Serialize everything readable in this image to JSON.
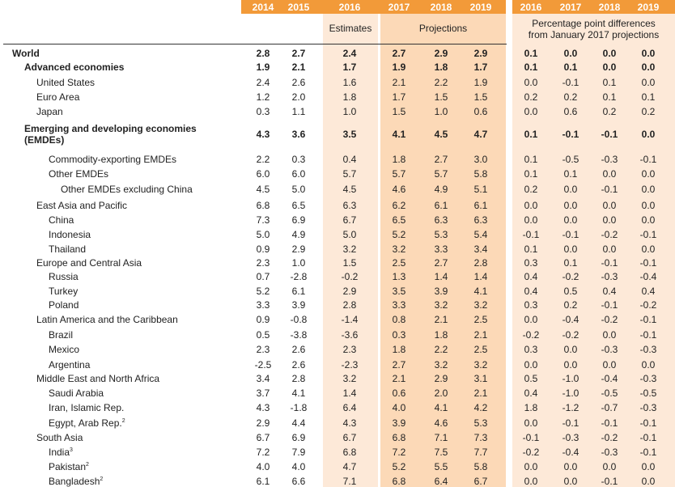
{
  "header": {
    "years_left": [
      "2014",
      "2015",
      "2016",
      "2017",
      "2018",
      "2019"
    ],
    "years_right": [
      "2016",
      "2017",
      "2018",
      "2019"
    ],
    "estimates_label": "Estimates",
    "projections_label": "Projections",
    "diff_label_line1": "Percentage point differences",
    "diff_label_line2": "from January 2017 projections"
  },
  "colors": {
    "header_orange": "#f29a39",
    "estimates_band": "#fde9d8",
    "projections_band": "#fcd9b7",
    "diff_band": "#fde9d8"
  },
  "rows": [
    {
      "label": "World",
      "indent": 0,
      "bold": true,
      "values": [
        "2.8",
        "2.7",
        "2.4",
        "2.7",
        "2.9",
        "2.9"
      ],
      "diffs": [
        "0.1",
        "0.0",
        "0.0",
        "0.0"
      ]
    },
    {
      "label": "Advanced economies",
      "indent": 1,
      "bold": true,
      "values": [
        "1.9",
        "2.1",
        "1.7",
        "1.9",
        "1.8",
        "1.7"
      ],
      "diffs": [
        "0.1",
        "0.1",
        "0.0",
        "0.0"
      ]
    },
    {
      "label": "United States",
      "indent": 2,
      "bold": false,
      "values": [
        "2.4",
        "2.6",
        "1.6",
        "2.1",
        "2.2",
        "1.9"
      ],
      "diffs": [
        "0.0",
        "-0.1",
        "0.1",
        "0.0"
      ]
    },
    {
      "label": "Euro Area",
      "indent": 2,
      "bold": false,
      "values": [
        "1.2",
        "2.0",
        "1.8",
        "1.7",
        "1.5",
        "1.5"
      ],
      "diffs": [
        "0.2",
        "0.2",
        "0.1",
        "0.1"
      ]
    },
    {
      "label": "Japan",
      "indent": 2,
      "bold": false,
      "values": [
        "0.3",
        "1.1",
        "1.0",
        "1.5",
        "1.0",
        "0.6"
      ],
      "diffs": [
        "0.0",
        "0.6",
        "0.2",
        "0.2"
      ]
    },
    {
      "label": "Emerging and developing economies",
      "label2": "(EMDEs)",
      "indent": 1,
      "bold": true,
      "values": [
        "4.3",
        "3.6",
        "3.5",
        "4.1",
        "4.5",
        "4.7"
      ],
      "diffs": [
        "0.1",
        "-0.1",
        "-0.1",
        "0.0"
      ]
    },
    {
      "label": "Commodity-exporting EMDEs",
      "indent": 3,
      "bold": false,
      "values": [
        "2.2",
        "0.3",
        "0.4",
        "1.8",
        "2.7",
        "3.0"
      ],
      "diffs": [
        "0.1",
        "-0.5",
        "-0.3",
        "-0.1"
      ]
    },
    {
      "label": "Other EMDEs",
      "indent": 3,
      "bold": false,
      "values": [
        "6.0",
        "6.0",
        "5.7",
        "5.7",
        "5.7",
        "5.8"
      ],
      "diffs": [
        "0.1",
        "0.1",
        "0.0",
        "0.0"
      ]
    },
    {
      "label": "Other EMDEs excluding China",
      "indent": 4,
      "bold": false,
      "values": [
        "4.5",
        "5.0",
        "4.5",
        "4.6",
        "4.9",
        "5.1"
      ],
      "diffs": [
        "0.2",
        "0.0",
        "-0.1",
        "0.0"
      ]
    },
    {
      "label": "East Asia and Pacific",
      "indent": 2,
      "bold": false,
      "values": [
        "6.8",
        "6.5",
        "6.3",
        "6.2",
        "6.1",
        "6.1"
      ],
      "diffs": [
        "0.0",
        "0.0",
        "0.0",
        "0.0"
      ]
    },
    {
      "label": "China",
      "indent": 3,
      "bold": false,
      "values": [
        "7.3",
        "6.9",
        "6.7",
        "6.5",
        "6.3",
        "6.3"
      ],
      "diffs": [
        "0.0",
        "0.0",
        "0.0",
        "0.0"
      ]
    },
    {
      "label": "Indonesia",
      "indent": 3,
      "bold": false,
      "values": [
        "5.0",
        "4.9",
        "5.0",
        "5.2",
        "5.3",
        "5.4"
      ],
      "diffs": [
        "-0.1",
        "-0.1",
        "-0.2",
        "-0.1"
      ]
    },
    {
      "label": "Thailand",
      "indent": 3,
      "bold": false,
      "values": [
        "0.9",
        "2.9",
        "3.2",
        "3.2",
        "3.3",
        "3.4"
      ],
      "diffs": [
        "0.1",
        "0.0",
        "0.0",
        "0.0"
      ]
    },
    {
      "label": "Europe and Central Asia",
      "indent": 2,
      "bold": false,
      "values": [
        "2.3",
        "1.0",
        "1.5",
        "2.5",
        "2.7",
        "2.8"
      ],
      "diffs": [
        "0.3",
        "0.1",
        "-0.1",
        "-0.1"
      ]
    },
    {
      "label": "Russia",
      "indent": 3,
      "bold": false,
      "values": [
        "0.7",
        "-2.8",
        "-0.2",
        "1.3",
        "1.4",
        "1.4"
      ],
      "diffs": [
        "0.4",
        "-0.2",
        "-0.3",
        "-0.4"
      ]
    },
    {
      "label": "Turkey",
      "indent": 3,
      "bold": false,
      "values": [
        "5.2",
        "6.1",
        "2.9",
        "3.5",
        "3.9",
        "4.1"
      ],
      "diffs": [
        "0.4",
        "0.5",
        "0.4",
        "0.4"
      ]
    },
    {
      "label": "Poland",
      "indent": 3,
      "bold": false,
      "values": [
        "3.3",
        "3.9",
        "2.8",
        "3.3",
        "3.2",
        "3.2"
      ],
      "diffs": [
        "0.3",
        "0.2",
        "-0.1",
        "-0.2"
      ]
    },
    {
      "label": "Latin America and the Caribbean",
      "indent": 2,
      "bold": false,
      "values": [
        "0.9",
        "-0.8",
        "-1.4",
        "0.8",
        "2.1",
        "2.5"
      ],
      "diffs": [
        "0.0",
        "-0.4",
        "-0.2",
        "-0.1"
      ]
    },
    {
      "label": "Brazil",
      "indent": 3,
      "bold": false,
      "values": [
        "0.5",
        "-3.8",
        "-3.6",
        "0.3",
        "1.8",
        "2.1"
      ],
      "diffs": [
        "-0.2",
        "-0.2",
        "0.0",
        "-0.1"
      ]
    },
    {
      "label": "Mexico",
      "indent": 3,
      "bold": false,
      "values": [
        "2.3",
        "2.6",
        "2.3",
        "1.8",
        "2.2",
        "2.5"
      ],
      "diffs": [
        "0.3",
        "0.0",
        "-0.3",
        "-0.3"
      ]
    },
    {
      "label": "Argentina",
      "indent": 3,
      "bold": false,
      "values": [
        "-2.5",
        "2.6",
        "-2.3",
        "2.7",
        "3.2",
        "3.2"
      ],
      "diffs": [
        "0.0",
        "0.0",
        "0.0",
        "0.0"
      ]
    },
    {
      "label": "Middle East and North Africa",
      "indent": 2,
      "bold": false,
      "values": [
        "3.4",
        "2.8",
        "3.2",
        "2.1",
        "2.9",
        "3.1"
      ],
      "diffs": [
        "0.5",
        "-1.0",
        "-0.4",
        "-0.3"
      ]
    },
    {
      "label": "Saudi Arabia",
      "indent": 3,
      "bold": false,
      "values": [
        "3.7",
        "4.1",
        "1.4",
        "0.6",
        "2.0",
        "2.1"
      ],
      "diffs": [
        "0.4",
        "-1.0",
        "-0.5",
        "-0.5"
      ]
    },
    {
      "label": "Iran, Islamic Rep.",
      "indent": 3,
      "bold": false,
      "values": [
        "4.3",
        "-1.8",
        "6.4",
        "4.0",
        "4.1",
        "4.2"
      ],
      "diffs": [
        "1.8",
        "-1.2",
        "-0.7",
        "-0.3"
      ]
    },
    {
      "label": "Egypt, Arab Rep.",
      "sup": "2",
      "indent": 3,
      "bold": false,
      "values": [
        "2.9",
        "4.4",
        "4.3",
        "3.9",
        "4.6",
        "5.3"
      ],
      "diffs": [
        "0.0",
        "-0.1",
        "-0.1",
        "-0.1"
      ]
    },
    {
      "label": "South Asia",
      "indent": 2,
      "bold": false,
      "values": [
        "6.7",
        "6.9",
        "6.7",
        "6.8",
        "7.1",
        "7.3"
      ],
      "diffs": [
        "-0.1",
        "-0.3",
        "-0.2",
        "-0.1"
      ]
    },
    {
      "label": "India",
      "sup": "3",
      "indent": 3,
      "bold": false,
      "values": [
        "7.2",
        "7.9",
        "6.8",
        "7.2",
        "7.5",
        "7.7"
      ],
      "diffs": [
        "-0.2",
        "-0.4",
        "-0.3",
        "-0.1"
      ]
    },
    {
      "label": "Pakistan",
      "sup": "2",
      "indent": 3,
      "bold": false,
      "values": [
        "4.0",
        "4.0",
        "4.7",
        "5.2",
        "5.5",
        "5.8"
      ],
      "diffs": [
        "0.0",
        "0.0",
        "0.0",
        "0.0"
      ]
    },
    {
      "label": "Bangladesh",
      "sup": "2",
      "indent": 3,
      "bold": false,
      "values": [
        "6.1",
        "6.6",
        "7.1",
        "6.8",
        "6.4",
        "6.7"
      ],
      "diffs": [
        "0.0",
        "0.0",
        "-0.1",
        "0.0"
      ]
    }
  ]
}
